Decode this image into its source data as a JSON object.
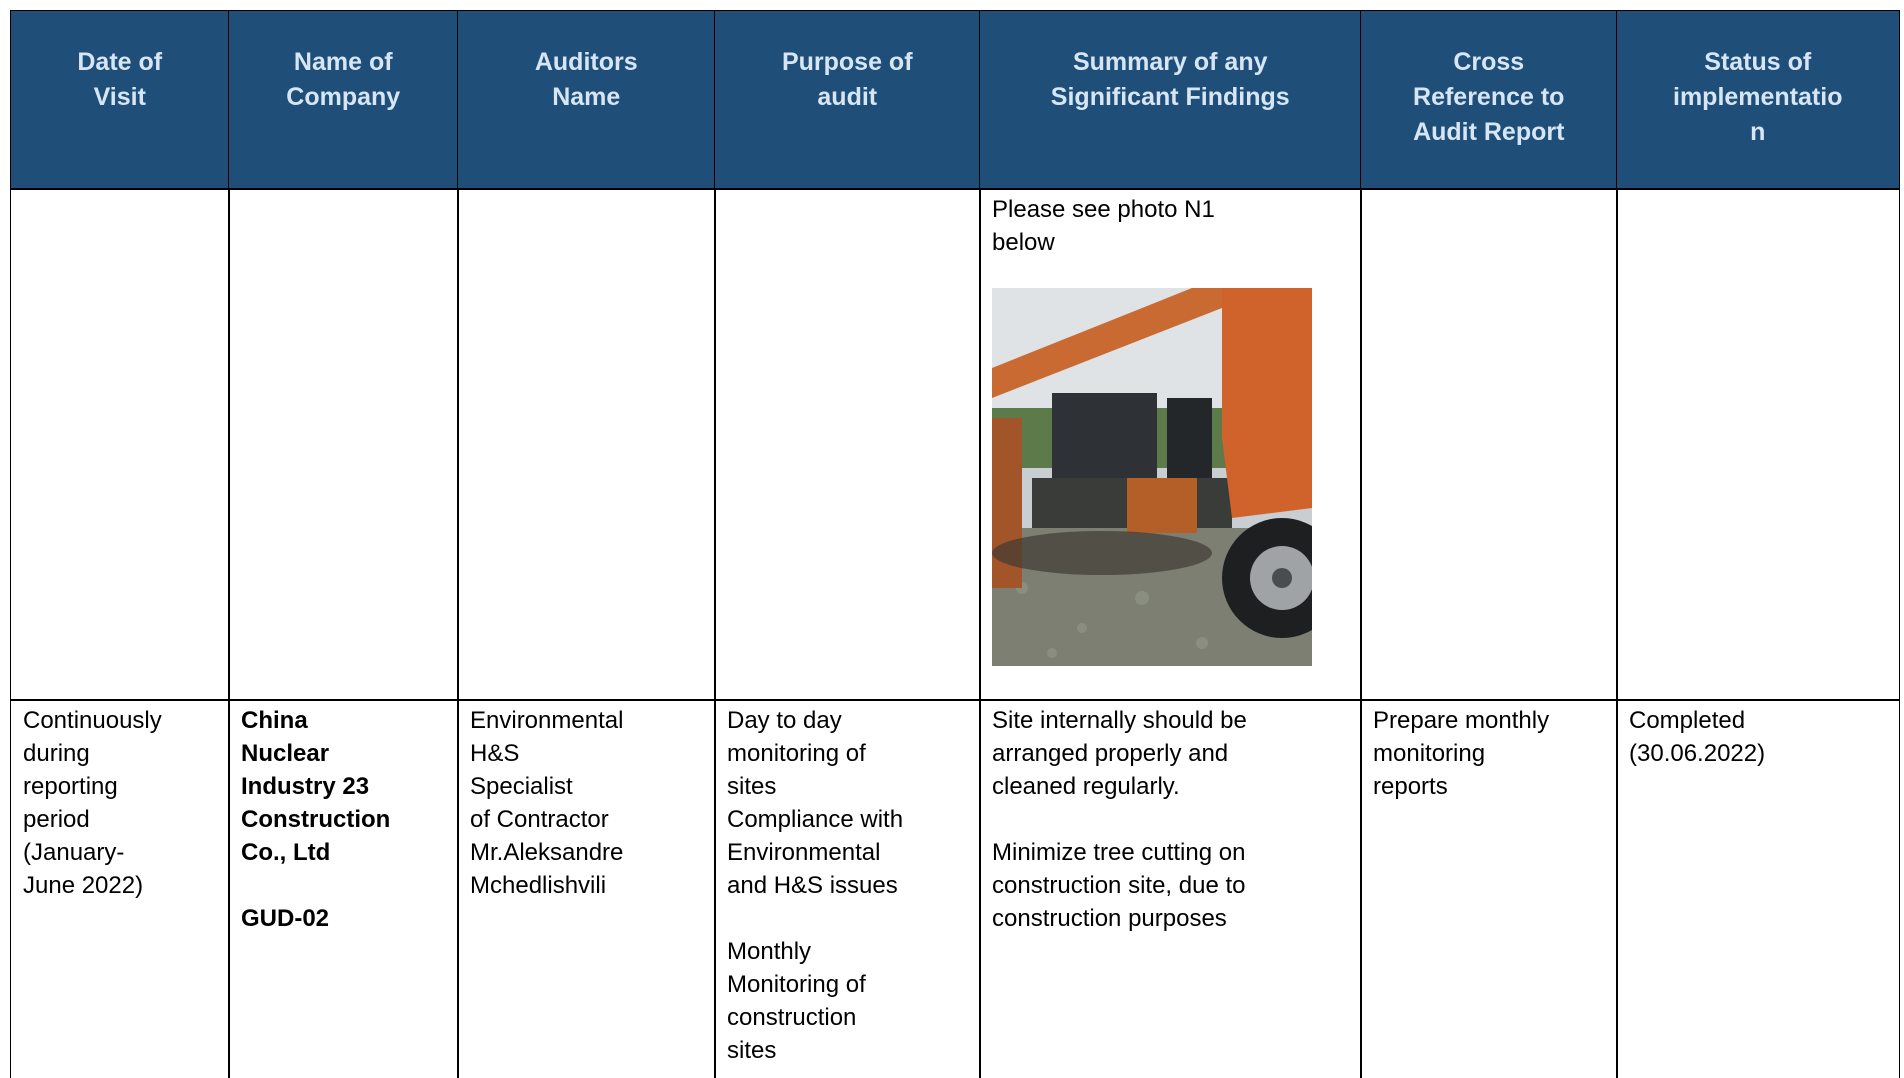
{
  "table": {
    "header": [
      [
        "Date of",
        "Visit"
      ],
      [
        "Name of",
        "Company"
      ],
      [
        "Auditors",
        "Name"
      ],
      [
        "Purpose of",
        "audit"
      ],
      [
        "Summary of any",
        "Significant Findings"
      ],
      [
        "Cross",
        "Reference to",
        "Audit Report"
      ],
      [
        "Status of",
        "implementatio",
        "n"
      ]
    ],
    "rows": [
      [
        [],
        [],
        [],
        [],
        [
          [
            "Please see photo N1",
            "below"
          ]
        ],
        [],
        []
      ],
      [
        [
          [
            "Continuously",
            "during",
            "reporting",
            "period",
            "(January-",
            "June 2022)"
          ]
        ],
        [
          [
            "China",
            "Nuclear",
            "Industry 23",
            "Construction",
            "Co., Ltd"
          ],
          [
            "GUD-02"
          ]
        ],
        [
          [
            "Environmental",
            "H&S",
            "Specialist",
            "of Contractor",
            "Mr.Aleksandre",
            "Mchedlishvili"
          ]
        ],
        [
          [
            "Day to day",
            "monitoring of",
            "sites",
            "Compliance with",
            "Environmental",
            "and H&S issues"
          ],
          [
            "Monthly",
            "Monitoring of",
            "construction",
            "sites"
          ]
        ],
        [
          [
            "Site internally should be",
            "arranged properly and",
            "cleaned regularly."
          ],
          [
            "Minimize tree cutting on",
            "construction site, due to",
            "construction purposes"
          ]
        ],
        [
          [
            "Prepare monthly",
            "monitoring",
            "reports"
          ]
        ],
        [
          [
            "Completed",
            "(30.06.2022)"
          ]
        ]
      ]
    ]
  }
}
